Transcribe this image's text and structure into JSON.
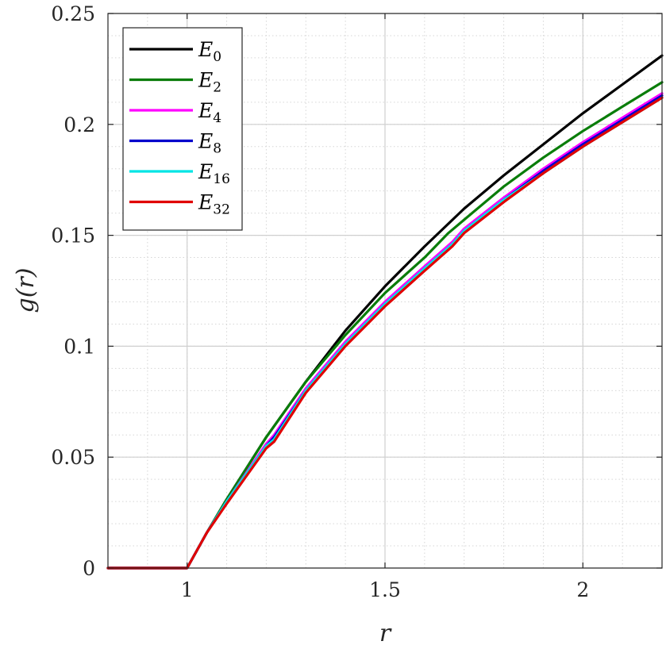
{
  "chart_data": {
    "type": "line",
    "title": "",
    "xlabel": "r",
    "ylabel": "g(r)",
    "xlim": [
      0.8,
      2.2
    ],
    "ylim": [
      0,
      0.25
    ],
    "x_ticks": [
      1,
      1.5,
      2
    ],
    "x_tick_labels": [
      "1",
      "1.5",
      "2"
    ],
    "y_ticks": [
      0,
      0.05,
      0.1,
      0.15,
      0.2,
      0.25
    ],
    "y_tick_labels": [
      "0",
      "0.05",
      "0.1",
      "0.15",
      "0.2",
      "0.25"
    ],
    "grid": true,
    "minor_grid": true,
    "legend_position": "top-left",
    "series": [
      {
        "name": "E",
        "sub": "0",
        "color": "#000000",
        "x": [
          0.8,
          1.0,
          1.0,
          1.05,
          1.1,
          1.2,
          1.3,
          1.4,
          1.5,
          1.6,
          1.7,
          1.8,
          1.9,
          2.0,
          2.1,
          2.2
        ],
        "y": [
          0,
          0,
          0,
          0.016,
          0.031,
          0.059,
          0.084,
          0.107,
          0.127,
          0.145,
          0.162,
          0.177,
          0.191,
          0.205,
          0.218,
          0.231
        ]
      },
      {
        "name": "E",
        "sub": "2",
        "color": "#0a7d0a",
        "x": [
          0.8,
          1.0,
          1.0,
          1.05,
          1.1,
          1.2,
          1.3,
          1.4,
          1.5,
          1.6,
          1.66,
          1.7,
          1.8,
          1.9,
          2.0,
          2.1,
          2.2
        ],
        "y": [
          0,
          0,
          0,
          0.016,
          0.031,
          0.059,
          0.084,
          0.105,
          0.124,
          0.14,
          0.151,
          0.157,
          0.172,
          0.185,
          0.197,
          0.208,
          0.219
        ]
      },
      {
        "name": "E",
        "sub": "4",
        "color": "#ff00ff",
        "x": [
          0.8,
          1.0,
          1.0,
          1.05,
          1.1,
          1.2,
          1.22,
          1.3,
          1.4,
          1.5,
          1.6,
          1.67,
          1.7,
          1.8,
          1.9,
          2.0,
          2.1,
          2.2
        ],
        "y": [
          0,
          0,
          0,
          0.016,
          0.03,
          0.056,
          0.06,
          0.081,
          0.102,
          0.12,
          0.136,
          0.147,
          0.153,
          0.167,
          0.18,
          0.192,
          0.203,
          0.214
        ]
      },
      {
        "name": "E",
        "sub": "8",
        "color": "#0000cc",
        "x": [
          0.8,
          1.0,
          1.0,
          1.05,
          1.1,
          1.2,
          1.22,
          1.3,
          1.4,
          1.5,
          1.6,
          1.67,
          1.7,
          1.8,
          1.9,
          2.0,
          2.1,
          2.2
        ],
        "y": [
          0,
          0,
          0,
          0.016,
          0.03,
          0.055,
          0.059,
          0.08,
          0.101,
          0.119,
          0.135,
          0.146,
          0.152,
          0.166,
          0.179,
          0.191,
          0.202,
          0.213
        ]
      },
      {
        "name": "E",
        "sub": "16",
        "color": "#00e5e5",
        "x": [
          0.8,
          1.0,
          1.0,
          1.05,
          1.1,
          1.2,
          1.22,
          1.3,
          1.4,
          1.5,
          1.6,
          1.67,
          1.7,
          1.8,
          1.9,
          2.0,
          2.1,
          2.2
        ],
        "y": [
          0,
          0,
          0,
          0.016,
          0.03,
          0.055,
          0.058,
          0.08,
          0.101,
          0.119,
          0.135,
          0.146,
          0.152,
          0.166,
          0.178,
          0.19,
          0.201,
          0.212
        ]
      },
      {
        "name": "E",
        "sub": "32",
        "color": "#e00000",
        "x": [
          0.8,
          1.0,
          1.0,
          1.05,
          1.1,
          1.2,
          1.22,
          1.3,
          1.4,
          1.5,
          1.6,
          1.67,
          1.7,
          1.8,
          1.9,
          2.0,
          2.1,
          2.2
        ],
        "y": [
          0,
          0,
          0,
          0.016,
          0.029,
          0.054,
          0.057,
          0.079,
          0.1,
          0.118,
          0.134,
          0.145,
          0.151,
          0.165,
          0.178,
          0.19,
          0.201,
          0.212
        ]
      }
    ]
  }
}
